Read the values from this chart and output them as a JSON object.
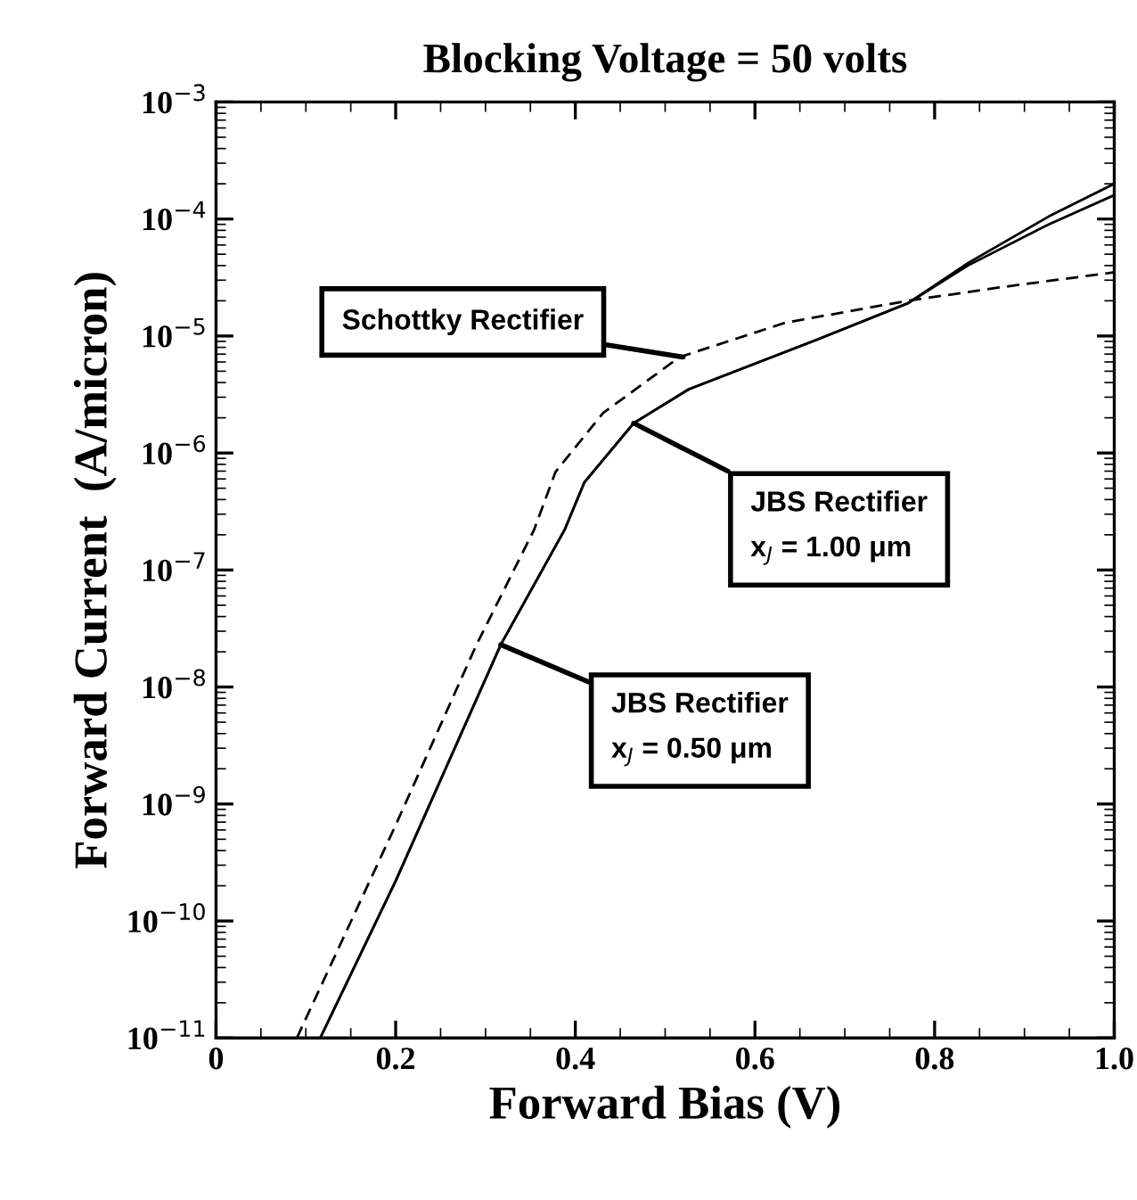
{
  "chart_data": {
    "type": "line",
    "title": "Blocking Voltage = 50 volts",
    "xlabel": "Forward Bias (V)",
    "ylabel": "Forward Current  (A/micron)",
    "log": "y",
    "xlim": [
      0,
      1.0
    ],
    "ylim": [
      1e-11,
      0.001
    ],
    "xticks": [
      0,
      0.2,
      0.4,
      0.6,
      0.8,
      {
        "value": 1.0,
        "label": "1.0"
      }
    ],
    "yticks": [
      {
        "value": 1e-11,
        "label": "10$^{−11}$"
      },
      {
        "value": 1e-10,
        "label": "10$^{−10}$"
      },
      {
        "value": 1e-09,
        "label": "10$^{−9}$"
      },
      {
        "value": 1e-08,
        "label": "10$^{−8}$"
      },
      {
        "value": 1e-07,
        "label": "10$^{−7}$"
      },
      {
        "value": 1e-06,
        "label": "10$^{−6}$"
      },
      {
        "value": 1e-05,
        "label": "10$^{−5}$"
      },
      {
        "value": 0.0001,
        "label": "10$^{−4}$"
      },
      {
        "value": 0.001,
        "label": "10$^{−3}$"
      }
    ],
    "grid": false,
    "legend": false,
    "marker": "none",
    "series": [
      {
        "color": "#000000",
        "line_style": "dashed",
        "x": [
          0.09,
          0.2,
          0.29,
          0.354,
          0.378,
          0.431,
          0.516,
          0.634,
          0.77,
          0.872,
          1.0
        ],
        "values": [
          1e-11,
          6.6e-10,
          2.3e-08,
          2.2e-07,
          6.9e-07,
          2.2e-06,
          6.6e-06,
          1.3e-05,
          2e-05,
          2.6e-05,
          3.5e-05
        ]
      },
      {
        "color": "#000000",
        "line_style": "solid",
        "x": [
          0.116,
          0.2,
          0.317,
          0.388,
          0.41,
          0.465,
          0.526,
          0.669,
          0.77,
          0.837,
          0.927,
          1.0
        ],
        "values": [
          1e-11,
          2.2e-10,
          2.3e-08,
          2.2e-07,
          5.6e-07,
          1.8e-06,
          3.5e-06,
          9.3e-06,
          1.9e-05,
          4e-05,
          9e-05,
          0.00016
        ]
      },
      {
        "color": "#000000",
        "line_style": "solid",
        "x": [
          0.116,
          0.2,
          0.317,
          0.388,
          0.41,
          0.465,
          0.526,
          0.669,
          0.77,
          0.837,
          0.927,
          1.0
        ],
        "values": [
          1e-11,
          2.2e-10,
          2.3e-08,
          2.2e-07,
          5.6e-07,
          1.8e-06,
          3.5e-06,
          9.3e-06,
          1.9e-05,
          4.2e-05,
          0.000105,
          0.0002
        ]
      }
    ],
    "annotations": [
      {
        "text": "Schottky Rectifier",
        "x": 0.52,
        "y": 6.6e-06
      },
      {
        "text": "JBS Rectifier\nx$_{J}$ = 1.00 μm",
        "x": 0.465,
        "y": 1.8e-06
      },
      {
        "text": "JBS Rectifier\nx$_{J}$ = 0.50 μm",
        "x": 0.317,
        "y": 2.3e-08
      }
    ]
  }
}
